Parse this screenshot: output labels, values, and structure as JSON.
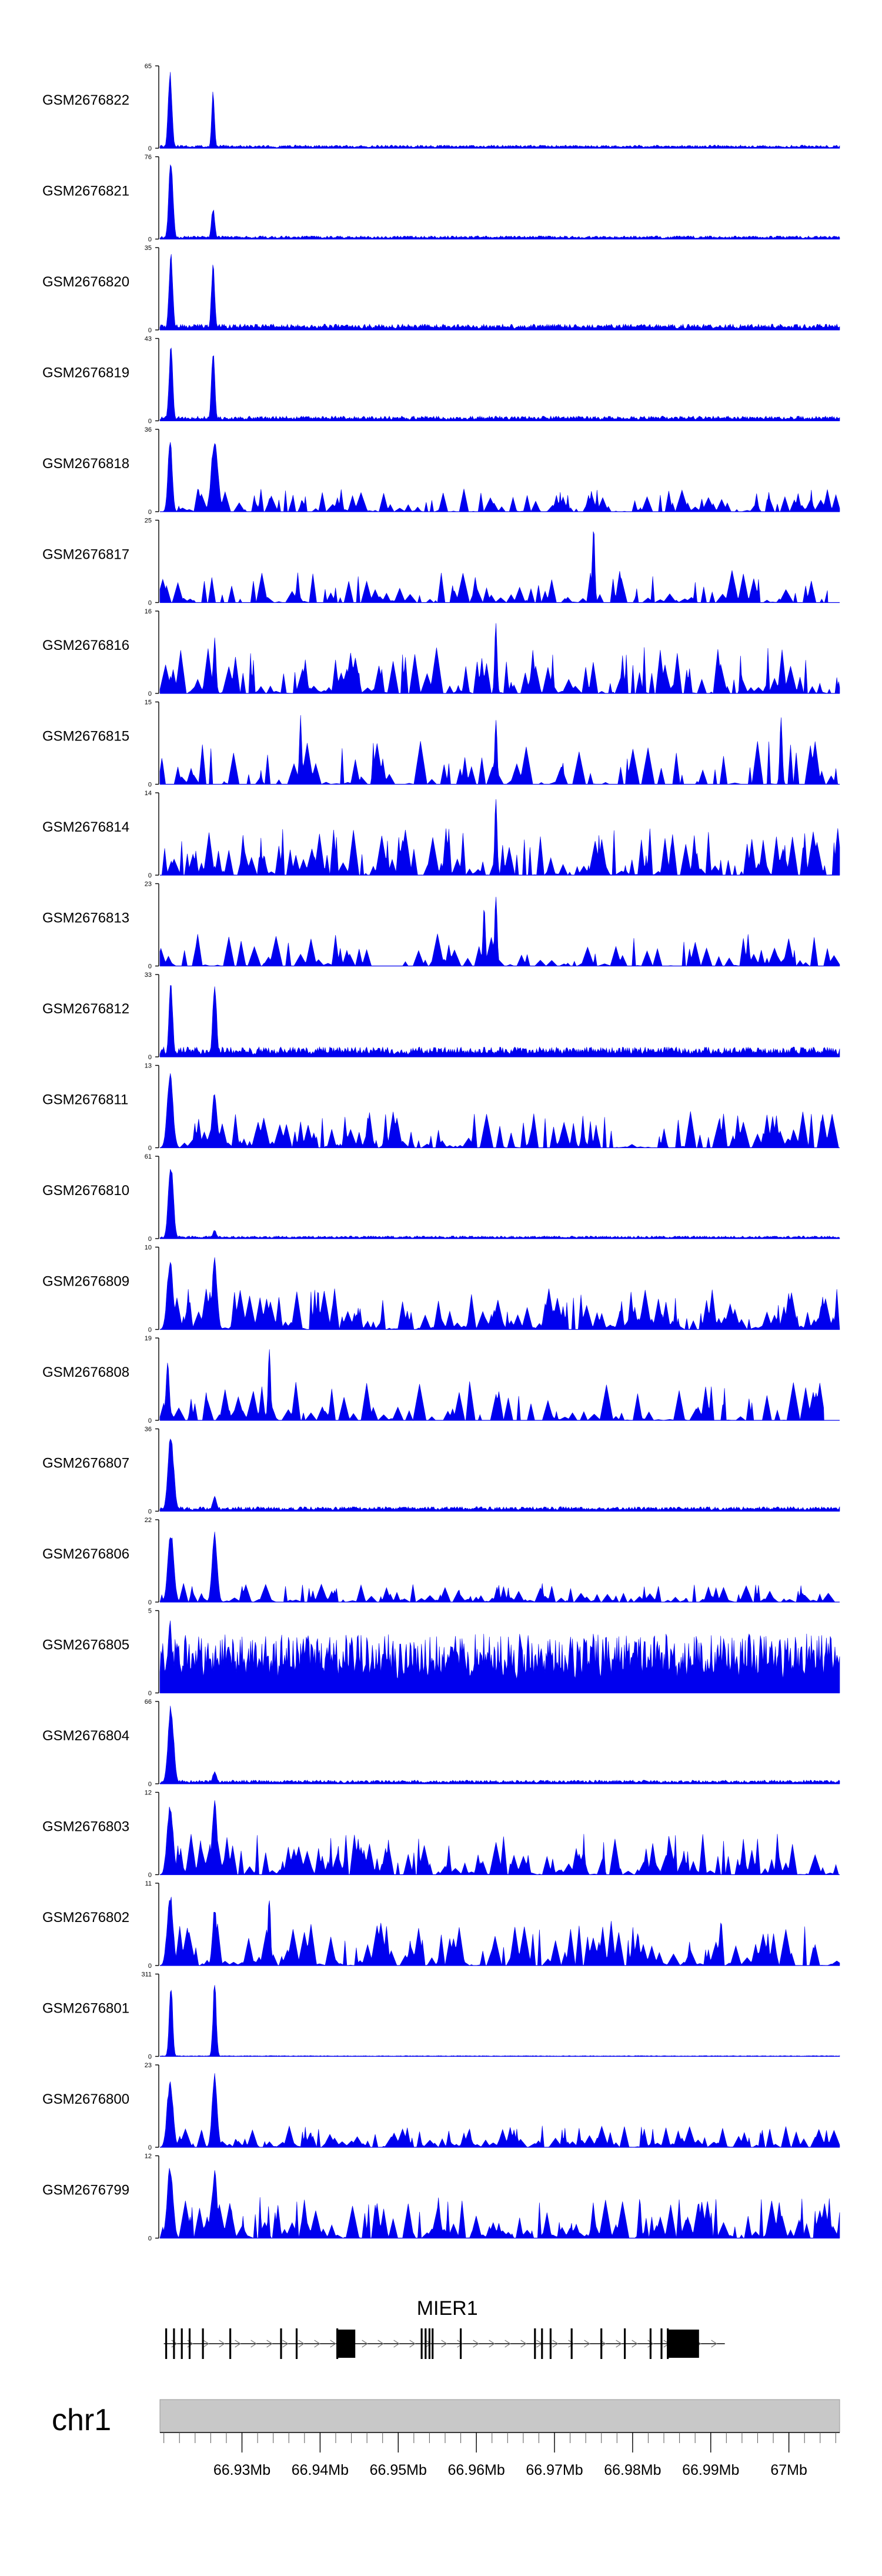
{
  "chart_data": {
    "type": "area",
    "subtype": "genome-browser-coverage-tracks",
    "chromosome": "chr1",
    "x_range_bp": [
      66919500,
      67006500
    ],
    "colors": {
      "track_fill": "#0000ee",
      "axis": "#000000",
      "ideogram": "#c8c8c8",
      "gene": "#000000"
    },
    "tracks": [
      {
        "name": "GSM2676822",
        "ymax": 65,
        "ymin": 0,
        "peaks": [
          [
            66920800,
            65,
            450
          ],
          [
            66926300,
            46,
            350
          ]
        ],
        "bg_level": 2.5,
        "bg_density": 1.0,
        "seed": 11,
        "tail_end": 67006500
      },
      {
        "name": "GSM2676821",
        "ymax": 76,
        "ymin": 0,
        "peaks": [
          [
            66920900,
            76,
            500
          ],
          [
            66926300,
            30,
            400
          ]
        ],
        "bg_level": 3,
        "bg_density": 1.0,
        "seed": 12,
        "tail_end": 67006500
      },
      {
        "name": "GSM2676820",
        "ymax": 35,
        "ymin": 0,
        "peaks": [
          [
            66920900,
            33,
            450
          ],
          [
            66926300,
            30,
            400
          ]
        ],
        "bg_level": 2.5,
        "bg_density": 1.0,
        "seed": 13,
        "tail_end": 67006500
      },
      {
        "name": "GSM2676819",
        "ymax": 43,
        "ymin": 0,
        "peaks": [
          [
            66920900,
            40,
            450
          ],
          [
            66926300,
            39,
            400
          ]
        ],
        "bg_level": 2.5,
        "bg_density": 1.0,
        "seed": 14,
        "tail_end": 67006500
      },
      {
        "name": "GSM2676818",
        "ymax": 36,
        "ymin": 0,
        "peaks": [
          [
            66920800,
            34,
            500
          ],
          [
            66926500,
            33,
            800
          ]
        ],
        "bg_level": 10,
        "bg_density": 0.5,
        "seed": 15,
        "tail_end": 67006500
      },
      {
        "name": "GSM2676817",
        "ymax": 25,
        "ymin": 0,
        "peaks": [
          [
            66975000,
            25,
            300
          ]
        ],
        "bg_level": 11,
        "bg_density": 0.35,
        "seed": 16,
        "tail_end": 67005000
      },
      {
        "name": "GSM2676816",
        "ymax": 16,
        "ymin": 0,
        "peaks": [
          [
            66962500,
            15,
            300
          ],
          [
            66926500,
            11,
            350
          ]
        ],
        "bg_level": 9,
        "bg_density": 0.55,
        "seed": 17,
        "tail_end": 67006500
      },
      {
        "name": "GSM2676815",
        "ymax": 15,
        "ymin": 0,
        "peaks": [
          [
            66937500,
            13,
            300
          ],
          [
            66962500,
            13,
            300
          ],
          [
            66999000,
            13,
            300
          ]
        ],
        "bg_level": 8,
        "bg_density": 0.22,
        "seed": 18,
        "tail_end": 67006500
      },
      {
        "name": "GSM2676814",
        "ymax": 14,
        "ymin": 0,
        "peaks": [
          [
            66962500,
            13,
            300
          ]
        ],
        "bg_level": 8,
        "bg_density": 0.6,
        "seed": 19,
        "tail_end": 67006500
      },
      {
        "name": "GSM2676813",
        "ymax": 23,
        "ymin": 0,
        "peaks": [
          [
            66962500,
            21,
            300
          ],
          [
            66961000,
            18,
            300
          ]
        ],
        "bg_level": 9,
        "bg_density": 0.35,
        "seed": 20,
        "tail_end": 67006500
      },
      {
        "name": "GSM2676812",
        "ymax": 33,
        "ymin": 0,
        "peaks": [
          [
            66920900,
            31,
            450
          ],
          [
            66926500,
            32,
            450
          ]
        ],
        "bg_level": 4,
        "bg_density": 0.9,
        "seed": 21,
        "tail_end": 67006500
      },
      {
        "name": "GSM2676811",
        "ymax": 13,
        "ymin": 0,
        "peaks": [
          [
            66920800,
            12,
            700
          ],
          [
            66926500,
            9,
            600
          ]
        ],
        "bg_level": 6,
        "bg_density": 0.55,
        "seed": 22,
        "tail_end": 67006500
      },
      {
        "name": "GSM2676810",
        "ymax": 61,
        "ymin": 0,
        "peaks": [
          [
            66920900,
            59,
            600
          ],
          [
            66926500,
            7,
            400
          ]
        ],
        "bg_level": 2,
        "bg_density": 1.0,
        "seed": 23,
        "tail_end": 67006500
      },
      {
        "name": "GSM2676809",
        "ymax": 10,
        "ymin": 0,
        "peaks": [
          [
            66920800,
            9,
            700
          ],
          [
            66926500,
            9,
            600
          ]
        ],
        "bg_level": 5,
        "bg_density": 0.65,
        "seed": 24,
        "tail_end": 67006500
      },
      {
        "name": "GSM2676808",
        "ymax": 19,
        "ymin": 0,
        "peaks": [
          [
            66933500,
            18,
            300
          ],
          [
            66920500,
            14,
            400
          ]
        ],
        "bg_level": 9,
        "bg_density": 0.4,
        "seed": 25,
        "tail_end": 67004500
      },
      {
        "name": "GSM2676807",
        "ymax": 36,
        "ymin": 0,
        "peaks": [
          [
            66920900,
            35,
            700
          ],
          [
            66926500,
            7,
            500
          ]
        ],
        "bg_level": 2,
        "bg_density": 1.0,
        "seed": 26,
        "tail_end": 67006500
      },
      {
        "name": "GSM2676806",
        "ymax": 22,
        "ymin": 0,
        "peaks": [
          [
            66920900,
            20,
            700
          ],
          [
            66926500,
            20,
            600
          ]
        ],
        "bg_level": 5,
        "bg_density": 0.55,
        "seed": 27,
        "tail_end": 67006500
      },
      {
        "name": "GSM2676805",
        "ymax": 5,
        "ymin": 0,
        "peaks": [
          [
            66920800,
            4.5,
            500
          ]
        ],
        "bg_level": 3.6,
        "bg_density": 0.9,
        "seed": 28,
        "tail_end": 67006500
      },
      {
        "name": "GSM2676804",
        "ymax": 66,
        "ymin": 0,
        "peaks": [
          [
            66920900,
            64,
            700
          ],
          [
            66926500,
            10,
            500
          ]
        ],
        "bg_level": 3,
        "bg_density": 1.0,
        "seed": 29,
        "tail_end": 67006500
      },
      {
        "name": "GSM2676803",
        "ymax": 12,
        "ymin": 0,
        "peaks": [
          [
            66920800,
            11,
            700
          ],
          [
            66926500,
            11,
            600
          ]
        ],
        "bg_level": 6,
        "bg_density": 0.6,
        "seed": 30,
        "tail_end": 67006500
      },
      {
        "name": "GSM2676802",
        "ymax": 11,
        "ymin": 0,
        "peaks": [
          [
            66920800,
            10,
            700
          ],
          [
            66933500,
            10,
            300
          ],
          [
            66926500,
            8,
            500
          ]
        ],
        "bg_level": 6,
        "bg_density": 0.55,
        "seed": 31,
        "tail_end": 67006500
      },
      {
        "name": "GSM2676801",
        "ymax": 311,
        "ymin": 0,
        "peaks": [
          [
            66920900,
            300,
            400
          ],
          [
            66926500,
            290,
            400
          ]
        ],
        "bg_level": 3,
        "bg_density": 1.0,
        "seed": 32,
        "tail_end": 67006500
      },
      {
        "name": "GSM2676800",
        "ymax": 23,
        "ymin": 0,
        "peaks": [
          [
            66920800,
            20,
            700
          ],
          [
            66926500,
            21,
            600
          ]
        ],
        "bg_level": 6,
        "bg_density": 0.6,
        "seed": 33,
        "tail_end": 67006500
      },
      {
        "name": "GSM2676799",
        "ymax": 12,
        "ymin": 0,
        "peaks": [
          [
            66920800,
            11,
            700
          ],
          [
            66926500,
            10,
            600
          ]
        ],
        "bg_level": 6,
        "bg_density": 0.6,
        "seed": 34,
        "tail_end": 67006500
      }
    ],
    "gene": {
      "name": "MIER1",
      "strand": "+",
      "start": 66920000,
      "end": 66991800,
      "thick_blocks": [
        [
          66942200,
          66944500
        ],
        [
          66984500,
          66988500
        ]
      ],
      "exon_ticks": [
        66920300,
        66921300,
        66922300,
        66923300,
        66925000,
        66928500,
        66935000,
        66937000,
        66942200,
        66953000,
        66953500,
        66954000,
        66954400,
        66958000,
        66967500,
        66968400,
        66969500,
        66972200,
        66976000,
        66979000,
        66982300,
        66983700,
        66984500
      ]
    },
    "axis": {
      "label": "chr1",
      "ticks": [
        {
          "pos": 66930000,
          "label": "66.93Mb"
        },
        {
          "pos": 66940000,
          "label": "66.94Mb"
        },
        {
          "pos": 66950000,
          "label": "66.95Mb"
        },
        {
          "pos": 66960000,
          "label": "66.96Mb"
        },
        {
          "pos": 66970000,
          "label": "66.97Mb"
        },
        {
          "pos": 66980000,
          "label": "66.98Mb"
        },
        {
          "pos": 66990000,
          "label": "66.99Mb"
        },
        {
          "pos": 67000000,
          "label": "67Mb"
        }
      ],
      "minor_tick_step": 2000
    }
  }
}
